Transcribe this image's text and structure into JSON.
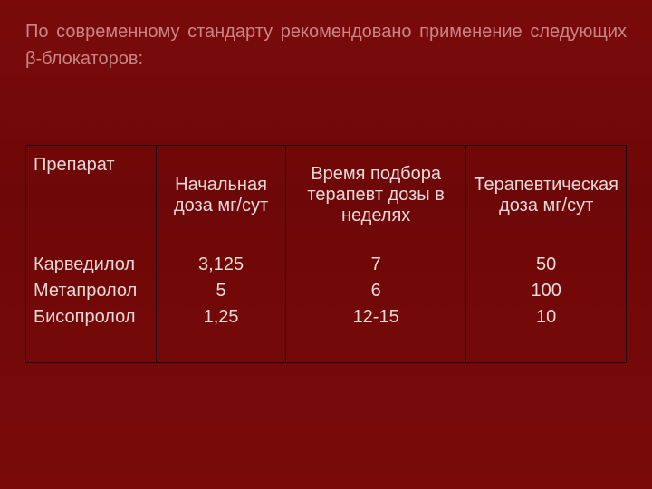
{
  "heading": "По современному стандарту рекомендовано применение следующих β-блокаторов:",
  "table": {
    "type": "table",
    "background_color": "transparent",
    "border_color": "#1a0303",
    "text_color": "#e8d8d8",
    "font_size_pt": 15,
    "columns": [
      {
        "label": "Препарат",
        "align": "left",
        "width_pct": 22
      },
      {
        "label": "Начальная доза мг/сут",
        "align": "center",
        "width_pct": 22
      },
      {
        "label": "Время подбора терапевт дозы в неделях",
        "align": "center",
        "width_pct": 32
      },
      {
        "label": "Терапевтическая доза мг/сут",
        "align": "center",
        "width_pct": 24
      }
    ],
    "rows": [
      {
        "drug": "Карведилол",
        "start_dose": "3,125",
        "weeks": "7",
        "therapeutic_dose": "50"
      },
      {
        "drug": "Метапролол",
        "start_dose": "5",
        "weeks": "6",
        "therapeutic_dose": "100"
      },
      {
        "drug": "Бисопролол",
        "start_dose": "1,25",
        "weeks": "12-15",
        "therapeutic_dose": "10"
      }
    ]
  },
  "slide_background_color": "#7a0a0a",
  "heading_color": "#c98585"
}
